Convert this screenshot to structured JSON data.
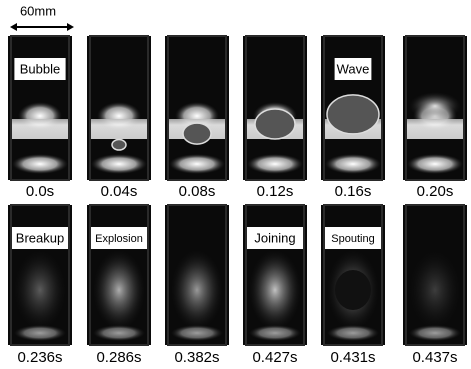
{
  "scale_label": "60mm",
  "rows": [
    {
      "frames": [
        {
          "time": "0.0s",
          "label": "Bubble"
        },
        {
          "time": "0.04s"
        },
        {
          "time": "0.08s"
        },
        {
          "time": "0.12s"
        },
        {
          "time": "0.16s",
          "label": "Wave"
        },
        {
          "time": "0.20s"
        }
      ]
    },
    {
      "frames": [
        {
          "time": "0.236s",
          "label": "Breakup"
        },
        {
          "time": "0.286s",
          "label": "Explosion"
        },
        {
          "time": "0.382s"
        },
        {
          "time": "0.427s",
          "label": "Joining"
        },
        {
          "time": "0.431s",
          "label": "Spouting"
        },
        {
          "time": "0.437s"
        }
      ]
    }
  ]
}
